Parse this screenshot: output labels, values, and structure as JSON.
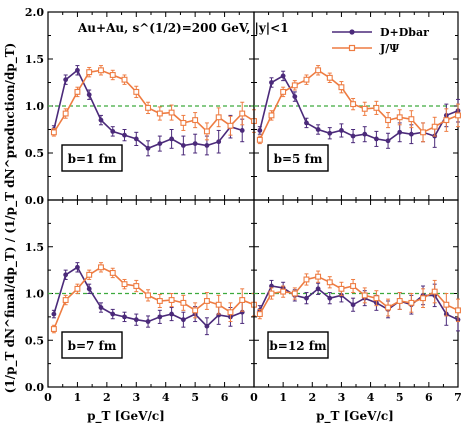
{
  "chart_data": {
    "type": "line",
    "layout": "2x2 grid of panels sharing axes",
    "ylabel": "(1/p_T dN^final/dp_T) / (1/p_T dN^production/dp_T)",
    "xlabel": "p_T [GeV/c]",
    "xlim": [
      0,
      7
    ],
    "ylim": [
      0.0,
      2.0
    ],
    "xticks": [
      "0",
      "1",
      "2",
      "3",
      "4",
      "5",
      "6",
      "7"
    ],
    "yticks": [
      "0.0",
      "0.5",
      "1.0",
      "1.5",
      "2.0"
    ],
    "reference_line": {
      "y": 1.0,
      "style": "dashed",
      "color": "#3daa3d"
    },
    "annotation": "Au+Au, s^(1/2)=200 GeV, |y|<1",
    "legend": {
      "position": "top-right",
      "entries": [
        "D+Dbar",
        "J/Ψ"
      ]
    },
    "colors": {
      "D+Dbar": "#4b2a7a",
      "J/Ψ": "#ee7c42"
    },
    "panels": [
      {
        "label": "b=1 fm",
        "series": [
          {
            "name": "D+Dbar",
            "x": [
              0.2,
              0.6,
              1.0,
              1.4,
              1.8,
              2.2,
              2.6,
              3.0,
              3.4,
              3.8,
              4.2,
              4.6,
              5.0,
              5.4,
              5.8,
              6.2,
              6.6
            ],
            "y": [
              0.75,
              1.28,
              1.38,
              1.12,
              0.85,
              0.73,
              0.69,
              0.65,
              0.55,
              0.6,
              0.65,
              0.58,
              0.6,
              0.58,
              0.62,
              0.78,
              0.74
            ],
            "err": [
              0.04,
              0.05,
              0.05,
              0.05,
              0.05,
              0.05,
              0.06,
              0.07,
              0.08,
              0.08,
              0.1,
              0.1,
              0.1,
              0.1,
              0.12,
              0.12,
              0.12
            ]
          },
          {
            "name": "J/Ψ",
            "x": [
              0.2,
              0.6,
              1.0,
              1.4,
              1.8,
              2.2,
              2.6,
              3.0,
              3.4,
              3.8,
              4.2,
              4.6,
              5.0,
              5.4,
              5.8,
              6.2,
              6.6,
              7.0
            ],
            "y": [
              0.72,
              0.92,
              1.15,
              1.36,
              1.38,
              1.33,
              1.28,
              1.15,
              0.98,
              0.92,
              0.93,
              0.82,
              0.85,
              0.73,
              0.88,
              0.79,
              0.92,
              0.84
            ],
            "err": [
              0.04,
              0.05,
              0.05,
              0.05,
              0.05,
              0.05,
              0.05,
              0.06,
              0.06,
              0.07,
              0.08,
              0.08,
              0.08,
              0.09,
              0.1,
              0.1,
              0.12,
              0.12
            ]
          }
        ]
      },
      {
        "label": "b=5 fm",
        "series": [
          {
            "name": "D+Dbar",
            "x": [
              0.2,
              0.6,
              1.0,
              1.4,
              1.8,
              2.2,
              2.6,
              3.0,
              3.4,
              3.8,
              4.2,
              4.6,
              5.0,
              5.4,
              5.8,
              6.2,
              6.6,
              7.0
            ],
            "y": [
              0.74,
              1.25,
              1.32,
              1.1,
              0.82,
              0.75,
              0.71,
              0.74,
              0.68,
              0.7,
              0.65,
              0.63,
              0.72,
              0.7,
              0.72,
              0.68,
              0.9,
              0.95
            ],
            "err": [
              0.04,
              0.05,
              0.05,
              0.05,
              0.05,
              0.05,
              0.06,
              0.07,
              0.07,
              0.08,
              0.08,
              0.08,
              0.1,
              0.1,
              0.1,
              0.12,
              0.12,
              0.12
            ]
          },
          {
            "name": "J/Ψ",
            "x": [
              0.2,
              0.6,
              1.0,
              1.4,
              1.8,
              2.2,
              2.6,
              3.0,
              3.4,
              3.8,
              4.2,
              4.6,
              5.0,
              5.4,
              5.8,
              6.2,
              6.6,
              7.0
            ],
            "y": [
              0.64,
              0.9,
              1.15,
              1.22,
              1.28,
              1.38,
              1.3,
              1.2,
              1.02,
              0.97,
              0.98,
              0.85,
              0.88,
              0.86,
              0.72,
              0.78,
              0.85,
              0.9
            ],
            "err": [
              0.04,
              0.05,
              0.05,
              0.05,
              0.05,
              0.05,
              0.05,
              0.06,
              0.06,
              0.07,
              0.07,
              0.08,
              0.08,
              0.09,
              0.1,
              0.1,
              0.12,
              0.12
            ]
          }
        ]
      },
      {
        "label": "b=7 fm",
        "series": [
          {
            "name": "D+Dbar",
            "x": [
              0.2,
              0.6,
              1.0,
              1.4,
              1.8,
              2.2,
              2.6,
              3.0,
              3.4,
              3.8,
              4.2,
              4.6,
              5.0,
              5.4,
              5.8,
              6.2,
              6.6
            ],
            "y": [
              0.78,
              1.2,
              1.28,
              1.05,
              0.85,
              0.78,
              0.75,
              0.72,
              0.7,
              0.75,
              0.78,
              0.72,
              0.78,
              0.65,
              0.77,
              0.75,
              0.8
            ],
            "err": [
              0.04,
              0.05,
              0.05,
              0.05,
              0.05,
              0.05,
              0.05,
              0.06,
              0.06,
              0.07,
              0.07,
              0.08,
              0.08,
              0.09,
              0.1,
              0.1,
              0.12
            ]
          },
          {
            "name": "J/Ψ",
            "x": [
              0.2,
              0.6,
              1.0,
              1.4,
              1.8,
              2.2,
              2.6,
              3.0,
              3.4,
              3.8,
              4.2,
              4.6,
              5.0,
              5.4,
              5.8,
              6.2,
              6.6,
              7.0
            ],
            "y": [
              0.62,
              0.93,
              1.05,
              1.2,
              1.28,
              1.22,
              1.1,
              1.08,
              0.98,
              0.92,
              0.93,
              0.9,
              0.82,
              0.92,
              0.88,
              0.8,
              0.93,
              0.88
            ],
            "err": [
              0.04,
              0.05,
              0.05,
              0.05,
              0.05,
              0.05,
              0.05,
              0.06,
              0.06,
              0.07,
              0.07,
              0.08,
              0.08,
              0.09,
              0.1,
              0.1,
              0.12,
              0.12
            ]
          }
        ]
      },
      {
        "label": "b=12 fm",
        "series": [
          {
            "name": "D+Dbar",
            "x": [
              0.2,
              0.6,
              1.0,
              1.4,
              1.8,
              2.2,
              2.6,
              3.0,
              3.4,
              3.8,
              4.2,
              4.6,
              5.0,
              5.4,
              5.8,
              6.2,
              6.6,
              7.0
            ],
            "y": [
              0.82,
              1.08,
              1.06,
              0.98,
              0.95,
              1.05,
              0.95,
              0.98,
              0.88,
              0.95,
              0.9,
              0.83,
              0.92,
              0.88,
              0.98,
              0.98,
              0.78,
              0.72
            ],
            "err": [
              0.05,
              0.06,
              0.06,
              0.06,
              0.06,
              0.06,
              0.06,
              0.07,
              0.07,
              0.08,
              0.08,
              0.09,
              0.09,
              0.1,
              0.1,
              0.12,
              0.12,
              0.12
            ]
          },
          {
            "name": "J/Ψ",
            "x": [
              0.2,
              0.6,
              1.0,
              1.4,
              1.8,
              2.2,
              2.6,
              3.0,
              3.4,
              3.8,
              4.2,
              4.6,
              5.0,
              5.4,
              5.8,
              6.2,
              6.6,
              7.0
            ],
            "y": [
              0.78,
              1.0,
              1.02,
              1.0,
              1.15,
              1.18,
              1.12,
              1.05,
              1.08,
              0.98,
              0.95,
              0.85,
              0.92,
              0.9,
              0.95,
              1.02,
              0.88,
              0.82
            ],
            "err": [
              0.05,
              0.06,
              0.06,
              0.06,
              0.06,
              0.06,
              0.06,
              0.07,
              0.07,
              0.08,
              0.08,
              0.09,
              0.09,
              0.1,
              0.1,
              0.12,
              0.12,
              0.12
            ]
          }
        ]
      }
    ]
  }
}
